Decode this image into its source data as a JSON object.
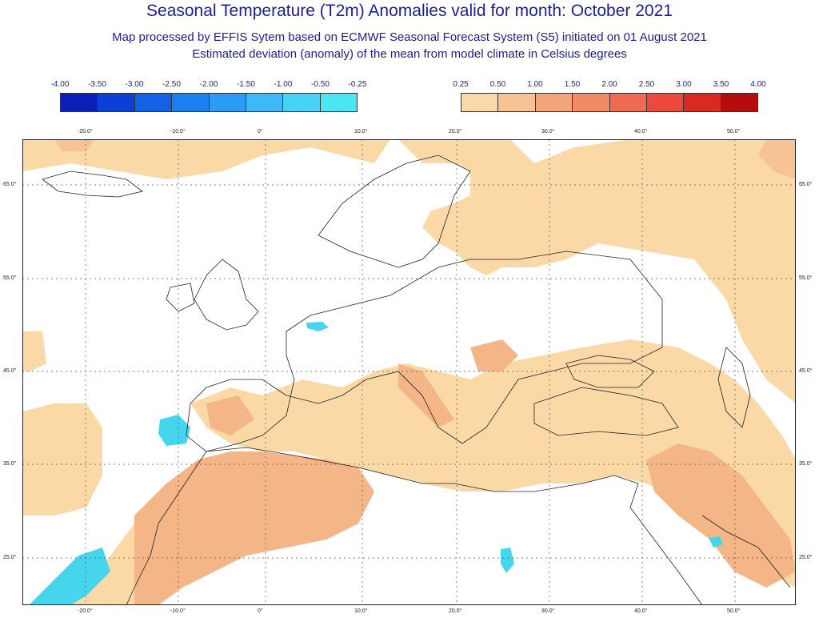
{
  "header": {
    "title": "Seasonal Temperature (T2m) Anomalies valid for month: October 2021",
    "subtitle1": "Map processed by EFFIS Sytem based on ECMWF Seasonal Forecast System (S5) initiated on 01 August 2021",
    "subtitle2": "Estimated deviation (anomaly) of the mean from model climate in Celsius degrees"
  },
  "legend_negative": {
    "labels": [
      "-4.00",
      "-3.50",
      "-3.00",
      "-2.50",
      "-2.00",
      "-1.50",
      "-1.00",
      "-0.50",
      "-0.25"
    ],
    "colors": [
      "#0a1fb8",
      "#0c3fd6",
      "#1361e6",
      "#1a7ff0",
      "#2a9cf5",
      "#3eb8f7",
      "#45d2f5",
      "#4be6f4"
    ]
  },
  "legend_positive": {
    "labels": [
      "0.25",
      "0.50",
      "1.00",
      "1.50",
      "2.00",
      "2.50",
      "3.00",
      "3.50",
      "4.00"
    ],
    "colors": [
      "#fad9a6",
      "#f7c394",
      "#f4a67b",
      "#f18b66",
      "#ef6a51",
      "#ec483b",
      "#d92a22",
      "#b40d0b"
    ]
  },
  "map": {
    "lon_labels": [
      "-20.0°",
      "-10.0°",
      "0°",
      "10.0°",
      "20.0°",
      "30.0°",
      "40.0°",
      "50.0°"
    ],
    "lat_labels": [
      "65.0°",
      "55.0°",
      "45.0°",
      "35.0°",
      "25.0°"
    ],
    "land_anomaly_color": "#fad9a6",
    "strong_anomaly_color": "#f4b587",
    "cold_anomaly_color": "#45d6ee"
  }
}
